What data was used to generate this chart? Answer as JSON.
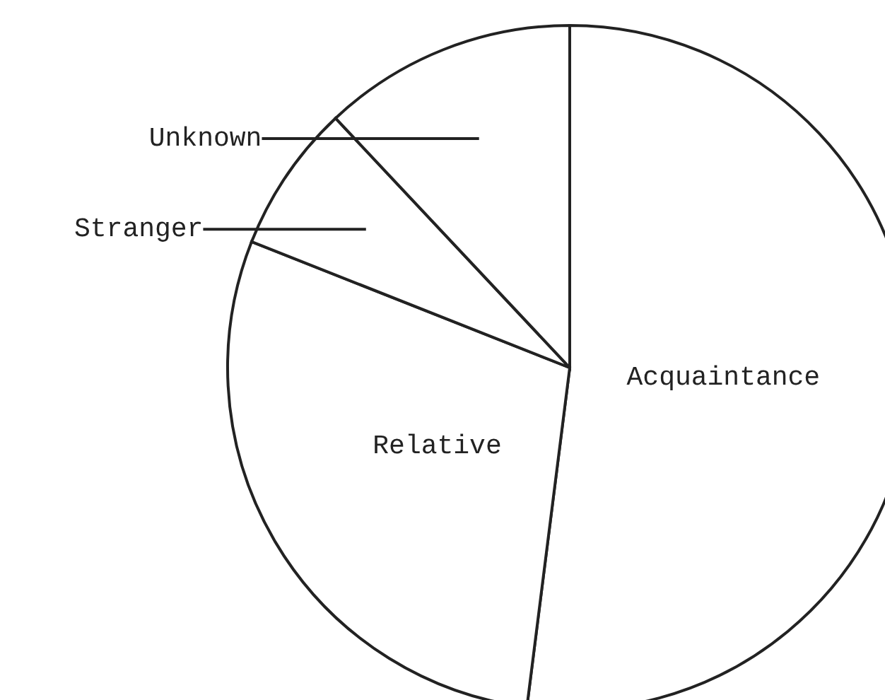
{
  "chart_data": {
    "type": "pie",
    "categories": [
      "Acquaintance",
      "Relative",
      "Stranger",
      "Unknown"
    ],
    "values": [
      52,
      29,
      7,
      12
    ],
    "colors": [
      "#ffffff",
      "#ffffff",
      "#ffffff",
      "#ffffff"
    ]
  }
}
